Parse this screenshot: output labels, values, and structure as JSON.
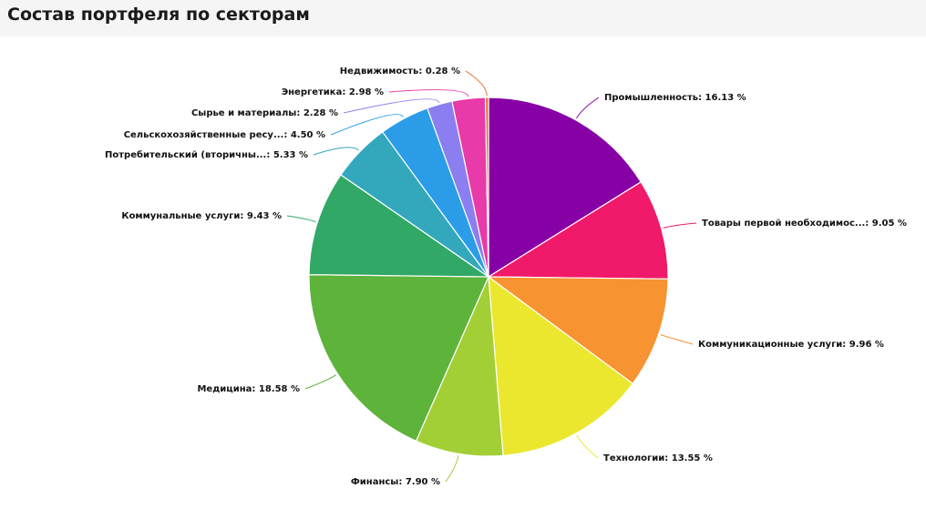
{
  "header": {
    "title": "Состав портфеля по секторам"
  },
  "chart_data": {
    "type": "pie",
    "title": "Состав портфеля по секторам",
    "start_angle_deg": 0,
    "direction": "clockwise",
    "slices": [
      {
        "label": "Промышленность",
        "value": 16.13,
        "display": "16.13 %",
        "color": "#8700a6"
      },
      {
        "label": "Товары первой необходимос...",
        "value": 9.05,
        "display": "9.05 %",
        "color": "#f0196a"
      },
      {
        "label": "Коммуникационные услуги",
        "value": 9.96,
        "display": "9.96 %",
        "color": "#f79330"
      },
      {
        "label": "Технологии",
        "value": 13.55,
        "display": "13.55 %",
        "color": "#ebe72f"
      },
      {
        "label": "Финансы",
        "value": 7.9,
        "display": "7.90 %",
        "color": "#a3cf36"
      },
      {
        "label": "Медицина",
        "value": 18.58,
        "display": "18.58 %",
        "color": "#5eb33b"
      },
      {
        "label": "Коммунальные услуги",
        "value": 9.43,
        "display": "9.43 %",
        "color": "#32a866"
      },
      {
        "label": "Потребительский (вторичны...",
        "value": 5.33,
        "display": "5.33 %",
        "color": "#33a8bd"
      },
      {
        "label": "Сельскохозяйственные ресу...",
        "value": 4.5,
        "display": "4.50 %",
        "color": "#2b9de8"
      },
      {
        "label": "Сырье и материалы",
        "value": 2.28,
        "display": "2.28 %",
        "color": "#8b7ef0"
      },
      {
        "label": "Энергетика",
        "value": 2.98,
        "display": "2.98 %",
        "color": "#e83aa8"
      },
      {
        "label": "Недвижимость",
        "value": 0.28,
        "display": "0.28 %",
        "color": "#e36b2c"
      }
    ]
  }
}
